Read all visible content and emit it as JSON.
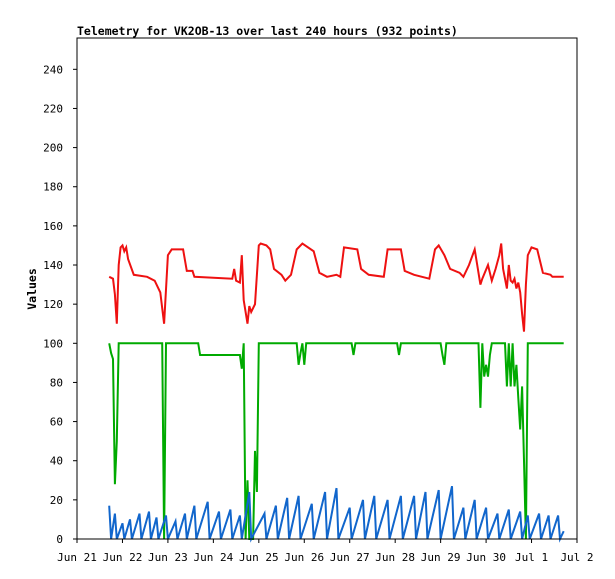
{
  "chart_data": {
    "type": "line",
    "title": "Telemetry for VK2OB-13 over last 240 hours (932 points)",
    "ylabel": "Values",
    "xlabel": "",
    "ylim": [
      0,
      256
    ],
    "xlim": [
      "2024-06-21",
      "2024-07-02"
    ],
    "y_ticks": [
      0,
      20,
      40,
      60,
      80,
      100,
      120,
      140,
      160,
      180,
      200,
      220,
      240
    ],
    "x_ticks": [
      {
        "label": "Jun 21",
        "date": "2024-06-21"
      },
      {
        "label": "Jun 22",
        "date": "2024-06-22"
      },
      {
        "label": "Jun 23",
        "date": "2024-06-23"
      },
      {
        "label": "Jun 24",
        "date": "2024-06-24"
      },
      {
        "label": "Jun 25",
        "date": "2024-06-25"
      },
      {
        "label": "Jun 26",
        "date": "2024-06-26"
      },
      {
        "label": "Jun 27",
        "date": "2024-06-27"
      },
      {
        "label": "Jun 28",
        "date": "2024-06-28"
      },
      {
        "label": "Jun 29",
        "date": "2024-06-29"
      },
      {
        "label": "Jun 30",
        "date": "2024-06-30"
      },
      {
        "label": "Jul 1",
        "date": "2024-07-01"
      },
      {
        "label": "Jul 2",
        "date": "2024-07-02"
      }
    ],
    "grid": false,
    "legend": "none",
    "series": [
      {
        "color": "#ee1111",
        "points": [
          [
            "2024-06-21T17:00",
            134
          ],
          [
            "2024-06-21T19:00",
            133
          ],
          [
            "2024-06-21T20:00",
            125
          ],
          [
            "2024-06-21T21:00",
            110
          ],
          [
            "2024-06-21T22:00",
            140
          ],
          [
            "2024-06-21T23:00",
            149
          ],
          [
            "2024-06-22T00:00",
            150
          ],
          [
            "2024-06-22T01:00",
            147
          ],
          [
            "2024-06-22T02:00",
            149
          ],
          [
            "2024-06-22T03:00",
            143
          ],
          [
            "2024-06-22T06:00",
            135
          ],
          [
            "2024-06-22T13:00",
            134
          ],
          [
            "2024-06-22T17:00",
            132
          ],
          [
            "2024-06-22T20:00",
            126
          ],
          [
            "2024-06-22T22:00",
            110
          ],
          [
            "2024-06-23T00:00",
            145
          ],
          [
            "2024-06-23T02:00",
            148
          ],
          [
            "2024-06-23T08:00",
            148
          ],
          [
            "2024-06-23T10:00",
            137
          ],
          [
            "2024-06-23T13:00",
            137
          ],
          [
            "2024-06-23T14:00",
            134
          ],
          [
            "2024-06-24T10:00",
            133
          ],
          [
            "2024-06-24T11:00",
            138
          ],
          [
            "2024-06-24T12:00",
            132
          ],
          [
            "2024-06-24T14:00",
            131
          ],
          [
            "2024-06-24T15:00",
            145
          ],
          [
            "2024-06-24T16:00",
            122
          ],
          [
            "2024-06-24T18:00",
            110
          ],
          [
            "2024-06-24T19:00",
            119
          ],
          [
            "2024-06-24T20:00",
            116
          ],
          [
            "2024-06-24T22:00",
            120
          ],
          [
            "2024-06-25T00:00",
            150
          ],
          [
            "2024-06-25T01:00",
            151
          ],
          [
            "2024-06-25T04:00",
            150
          ],
          [
            "2024-06-25T06:00",
            148
          ],
          [
            "2024-06-25T08:00",
            138
          ],
          [
            "2024-06-25T12:00",
            135
          ],
          [
            "2024-06-25T14:00",
            132
          ],
          [
            "2024-06-25T17:00",
            135
          ],
          [
            "2024-06-25T20:00",
            148
          ],
          [
            "2024-06-25T23:00",
            151
          ],
          [
            "2024-06-26T05:00",
            147
          ],
          [
            "2024-06-26T08:00",
            136
          ],
          [
            "2024-06-26T12:00",
            134
          ],
          [
            "2024-06-26T17:00",
            135
          ],
          [
            "2024-06-26T19:00",
            134
          ],
          [
            "2024-06-26T21:00",
            149
          ],
          [
            "2024-06-27T04:00",
            148
          ],
          [
            "2024-06-27T06:00",
            138
          ],
          [
            "2024-06-27T10:00",
            135
          ],
          [
            "2024-06-27T18:00",
            134
          ],
          [
            "2024-06-27T20:00",
            148
          ],
          [
            "2024-06-28T03:00",
            148
          ],
          [
            "2024-06-28T05:00",
            137
          ],
          [
            "2024-06-28T10:00",
            135
          ],
          [
            "2024-06-28T18:00",
            133
          ],
          [
            "2024-06-28T21:00",
            148
          ],
          [
            "2024-06-28T23:00",
            150
          ],
          [
            "2024-06-29T02:00",
            145
          ],
          [
            "2024-06-29T05:00",
            138
          ],
          [
            "2024-06-29T10:00",
            136
          ],
          [
            "2024-06-29T12:00",
            134
          ],
          [
            "2024-06-29T15:00",
            140
          ],
          [
            "2024-06-29T18:00",
            148
          ],
          [
            "2024-06-29T21:00",
            130
          ],
          [
            "2024-06-29T22:00",
            133
          ],
          [
            "2024-06-30T01:00",
            140
          ],
          [
            "2024-06-30T03:00",
            132
          ],
          [
            "2024-06-30T05:00",
            138
          ],
          [
            "2024-06-30T07:00",
            145
          ],
          [
            "2024-06-30T08:00",
            151
          ],
          [
            "2024-06-30T09:00",
            138
          ],
          [
            "2024-06-30T11:00",
            128
          ],
          [
            "2024-06-30T12:00",
            140
          ],
          [
            "2024-06-30T13:00",
            132
          ],
          [
            "2024-06-30T14:00",
            131
          ],
          [
            "2024-06-30T15:00",
            133
          ],
          [
            "2024-06-30T16:00",
            128
          ],
          [
            "2024-06-30T17:00",
            131
          ],
          [
            "2024-06-30T18:00",
            126
          ],
          [
            "2024-06-30T19:00",
            115
          ],
          [
            "2024-06-30T20:00",
            106
          ],
          [
            "2024-06-30T21:00",
            130
          ],
          [
            "2024-06-30T22:00",
            145
          ],
          [
            "2024-07-01T00:00",
            149
          ],
          [
            "2024-07-01T03:00",
            148
          ],
          [
            "2024-07-01T05:00",
            140
          ],
          [
            "2024-07-01T06:00",
            136
          ],
          [
            "2024-07-01T10:00",
            135
          ],
          [
            "2024-07-01T11:00",
            134
          ],
          [
            "2024-07-01T17:00",
            134
          ]
        ]
      },
      {
        "color": "#00aa00",
        "points": [
          [
            "2024-06-21T17:00",
            100
          ],
          [
            "2024-06-21T18:00",
            95
          ],
          [
            "2024-06-21T19:00",
            92
          ],
          [
            "2024-06-21T20:00",
            28
          ],
          [
            "2024-06-21T21:00",
            50
          ],
          [
            "2024-06-21T22:00",
            100
          ],
          [
            "2024-06-22T21:00",
            100
          ],
          [
            "2024-06-22T22:00",
            0
          ],
          [
            "2024-06-22T23:00",
            100
          ],
          [
            "2024-06-23T16:00",
            100
          ],
          [
            "2024-06-23T17:00",
            94
          ],
          [
            "2024-06-24T14:00",
            94
          ],
          [
            "2024-06-24T15:00",
            87
          ],
          [
            "2024-06-24T16:00",
            100
          ],
          [
            "2024-06-24T17:00",
            0
          ],
          [
            "2024-06-24T18:00",
            30
          ],
          [
            "2024-06-24T19:00",
            0
          ],
          [
            "2024-06-24T21:00",
            0
          ],
          [
            "2024-06-24T22:00",
            45
          ],
          [
            "2024-06-24T23:00",
            24
          ],
          [
            "2024-06-25T00:00",
            100
          ],
          [
            "2024-06-25T20:00",
            100
          ],
          [
            "2024-06-25T21:00",
            89
          ],
          [
            "2024-06-25T22:00",
            95
          ],
          [
            "2024-06-25T23:00",
            100
          ],
          [
            "2024-06-26T00:00",
            89
          ],
          [
            "2024-06-26T01:00",
            100
          ],
          [
            "2024-06-27T01:00",
            100
          ],
          [
            "2024-06-27T02:00",
            94
          ],
          [
            "2024-06-27T03:00",
            100
          ],
          [
            "2024-06-28T01:00",
            100
          ],
          [
            "2024-06-28T02:00",
            94
          ],
          [
            "2024-06-28T03:00",
            100
          ],
          [
            "2024-06-29T00:00",
            100
          ],
          [
            "2024-06-29T01:00",
            94
          ],
          [
            "2024-06-29T02:00",
            89
          ],
          [
            "2024-06-29T03:00",
            100
          ],
          [
            "2024-06-29T20:00",
            100
          ],
          [
            "2024-06-29T21:00",
            67
          ],
          [
            "2024-06-29T22:00",
            100
          ],
          [
            "2024-06-29T23:00",
            83
          ],
          [
            "2024-06-30T00:00",
            89
          ],
          [
            "2024-06-30T01:00",
            83
          ],
          [
            "2024-06-30T02:00",
            94
          ],
          [
            "2024-06-30T03:00",
            100
          ],
          [
            "2024-06-30T10:00",
            100
          ],
          [
            "2024-06-30T11:00",
            78
          ],
          [
            "2024-06-30T12:00",
            100
          ],
          [
            "2024-06-30T13:00",
            78
          ],
          [
            "2024-06-30T14:00",
            100
          ],
          [
            "2024-06-30T15:00",
            78
          ],
          [
            "2024-06-30T16:00",
            89
          ],
          [
            "2024-06-30T17:00",
            72
          ],
          [
            "2024-06-30T18:00",
            56
          ],
          [
            "2024-06-30T19:00",
            78
          ],
          [
            "2024-06-30T20:00",
            40
          ],
          [
            "2024-06-30T21:00",
            0
          ],
          [
            "2024-06-30T22:00",
            100
          ],
          [
            "2024-07-01T17:00",
            100
          ]
        ]
      },
      {
        "color": "#1166cc",
        "points": [
          [
            "2024-06-21T17:00",
            17
          ],
          [
            "2024-06-21T18:00",
            0
          ],
          [
            "2024-06-21T20:00",
            13
          ],
          [
            "2024-06-21T21:00",
            0
          ],
          [
            "2024-06-22T00:00",
            8
          ],
          [
            "2024-06-22T01:00",
            0
          ],
          [
            "2024-06-22T04:00",
            10
          ],
          [
            "2024-06-22T05:00",
            0
          ],
          [
            "2024-06-22T09:00",
            13
          ],
          [
            "2024-06-22T10:00",
            0
          ],
          [
            "2024-06-22T14:00",
            14
          ],
          [
            "2024-06-22T15:00",
            0
          ],
          [
            "2024-06-22T18:00",
            11
          ],
          [
            "2024-06-22T19:00",
            0
          ],
          [
            "2024-06-22T23:00",
            12
          ],
          [
            "2024-06-23T00:00",
            0
          ],
          [
            "2024-06-23T04:00",
            9
          ],
          [
            "2024-06-23T05:00",
            0
          ],
          [
            "2024-06-23T09:00",
            13
          ],
          [
            "2024-06-23T10:00",
            0
          ],
          [
            "2024-06-23T14:00",
            17
          ],
          [
            "2024-06-23T15:00",
            0
          ],
          [
            "2024-06-23T21:00",
            19
          ],
          [
            "2024-06-23T22:00",
            0
          ],
          [
            "2024-06-24T03:00",
            14
          ],
          [
            "2024-06-24T04:00",
            0
          ],
          [
            "2024-06-24T09:00",
            15
          ],
          [
            "2024-06-24T10:00",
            0
          ],
          [
            "2024-06-24T14:00",
            12
          ],
          [
            "2024-06-24T15:00",
            0
          ],
          [
            "2024-06-24T19:00",
            24
          ],
          [
            "2024-06-24T20:00",
            0
          ],
          [
            "2024-06-25T03:00",
            13
          ],
          [
            "2024-06-25T04:00",
            0
          ],
          [
            "2024-06-25T09:00",
            17
          ],
          [
            "2024-06-25T10:00",
            0
          ],
          [
            "2024-06-25T15:00",
            21
          ],
          [
            "2024-06-25T16:00",
            0
          ],
          [
            "2024-06-25T21:00",
            22
          ],
          [
            "2024-06-25T22:00",
            0
          ],
          [
            "2024-06-26T04:00",
            18
          ],
          [
            "2024-06-26T05:00",
            0
          ],
          [
            "2024-06-26T11:00",
            24
          ],
          [
            "2024-06-26T12:00",
            0
          ],
          [
            "2024-06-26T17:00",
            26
          ],
          [
            "2024-06-26T18:00",
            0
          ],
          [
            "2024-06-27T00:00",
            16
          ],
          [
            "2024-06-27T01:00",
            0
          ],
          [
            "2024-06-27T07:00",
            20
          ],
          [
            "2024-06-27T08:00",
            0
          ],
          [
            "2024-06-27T13:00",
            22
          ],
          [
            "2024-06-27T14:00",
            0
          ],
          [
            "2024-06-27T20:00",
            20
          ],
          [
            "2024-06-27T21:00",
            0
          ],
          [
            "2024-06-28T03:00",
            22
          ],
          [
            "2024-06-28T04:00",
            0
          ],
          [
            "2024-06-28T10:00",
            22
          ],
          [
            "2024-06-28T11:00",
            0
          ],
          [
            "2024-06-28T16:00",
            24
          ],
          [
            "2024-06-28T17:00",
            0
          ],
          [
            "2024-06-28T23:00",
            25
          ],
          [
            "2024-06-29T00:00",
            0
          ],
          [
            "2024-06-29T06:00",
            27
          ],
          [
            "2024-06-29T07:00",
            0
          ],
          [
            "2024-06-29T12:00",
            16
          ],
          [
            "2024-06-29T13:00",
            0
          ],
          [
            "2024-06-29T18:00",
            20
          ],
          [
            "2024-06-29T19:00",
            0
          ],
          [
            "2024-06-30T00:00",
            16
          ],
          [
            "2024-06-30T01:00",
            0
          ],
          [
            "2024-06-30T06:00",
            13
          ],
          [
            "2024-06-30T07:00",
            0
          ],
          [
            "2024-06-30T12:00",
            15
          ],
          [
            "2024-06-30T13:00",
            0
          ],
          [
            "2024-06-30T18:00",
            14
          ],
          [
            "2024-06-30T19:00",
            0
          ],
          [
            "2024-06-30T22:00",
            12
          ],
          [
            "2024-06-30T23:00",
            0
          ],
          [
            "2024-07-01T04:00",
            13
          ],
          [
            "2024-07-01T05:00",
            0
          ],
          [
            "2024-07-01T09:00",
            12
          ],
          [
            "2024-07-01T10:00",
            0
          ],
          [
            "2024-07-01T14:00",
            12
          ],
          [
            "2024-07-01T15:00",
            0
          ],
          [
            "2024-07-01T17:00",
            4
          ]
        ]
      }
    ]
  }
}
